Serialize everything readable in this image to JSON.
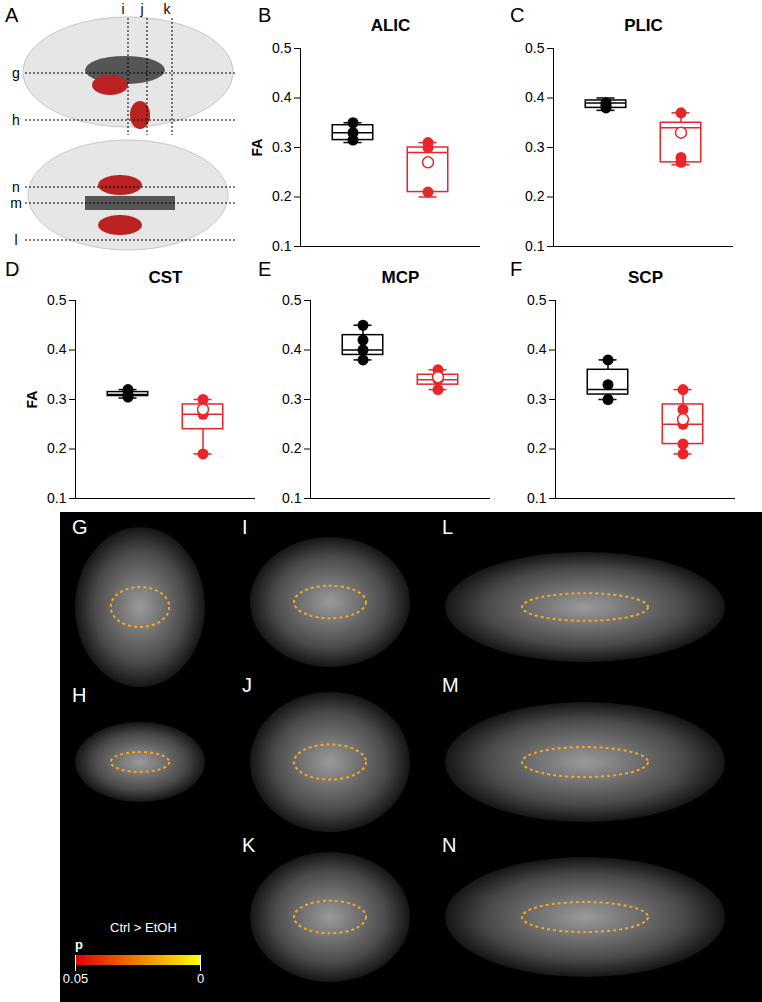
{
  "chart_data": [
    {
      "type": "box",
      "panel": "B",
      "title": "ALIC",
      "ylabel": "FA",
      "ylim": [
        0.1,
        0.5
      ],
      "yticks": [
        0.1,
        0.2,
        0.3,
        0.4,
        0.5
      ],
      "tick_labels": "y",
      "series": [
        {
          "color": "#000000",
          "points": [
            0.35,
            0.33,
            0.315
          ],
          "box": {
            "min": 0.31,
            "q1": 0.315,
            "median": 0.33,
            "q3": 0.345,
            "max": 0.35
          }
        },
        {
          "color": "#e8262a",
          "points": [
            0.31,
            0.3,
            0.21
          ],
          "box": {
            "min": 0.2,
            "q1": 0.21,
            "median": 0.29,
            "q3": 0.3,
            "max": 0.31
          },
          "mean": 0.27
        }
      ]
    },
    {
      "type": "box",
      "panel": "C",
      "title": "PLIC",
      "ylim": [
        0.1,
        0.5
      ],
      "yticks": [
        0.1,
        0.2,
        0.3,
        0.4,
        0.5
      ],
      "tick_labels": "y",
      "series": [
        {
          "color": "#000000",
          "points": [
            0.39,
            0.385,
            0.38
          ],
          "box": {
            "min": 0.375,
            "q1": 0.38,
            "median": 0.39,
            "q3": 0.395,
            "max": 0.4
          }
        },
        {
          "color": "#e8262a",
          "points": [
            0.37,
            0.33,
            0.28,
            0.27
          ],
          "box": {
            "min": 0.265,
            "q1": 0.27,
            "median": 0.34,
            "q3": 0.35,
            "max": 0.37
          },
          "mean": 0.33
        }
      ]
    },
    {
      "type": "box",
      "panel": "D",
      "title": "CST",
      "ylabel": "FA",
      "ylim": [
        0.1,
        0.5
      ],
      "yticks": [
        0.1,
        0.2,
        0.3,
        0.4,
        0.5
      ],
      "tick_labels": "y",
      "series": [
        {
          "color": "#000000",
          "points": [
            0.32,
            0.31,
            0.305
          ],
          "box": {
            "min": 0.303,
            "q1": 0.307,
            "median": 0.31,
            "q3": 0.315,
            "max": 0.32
          }
        },
        {
          "color": "#e8262a",
          "points": [
            0.3,
            0.27,
            0.19
          ],
          "box": {
            "min": 0.19,
            "q1": 0.24,
            "median": 0.27,
            "q3": 0.29,
            "max": 0.3
          },
          "mean": 0.28
        }
      ]
    },
    {
      "type": "box",
      "panel": "E",
      "title": "MCP",
      "ylim": [
        0.1,
        0.5
      ],
      "yticks": [
        0.1,
        0.2,
        0.3,
        0.4,
        0.5
      ],
      "tick_labels": "y",
      "series": [
        {
          "color": "#000000",
          "points": [
            0.45,
            0.42,
            0.4,
            0.38
          ],
          "box": {
            "min": 0.38,
            "q1": 0.39,
            "median": 0.4,
            "q3": 0.43,
            "max": 0.45
          }
        },
        {
          "color": "#e8262a",
          "points": [
            0.36,
            0.34,
            0.32
          ],
          "box": {
            "min": 0.32,
            "q1": 0.33,
            "median": 0.34,
            "q3": 0.35,
            "max": 0.36
          },
          "mean": 0.345
        }
      ]
    },
    {
      "type": "box",
      "panel": "F",
      "title": "SCP",
      "ylim": [
        0.1,
        0.5
      ],
      "yticks": [
        0.1,
        0.2,
        0.3,
        0.4,
        0.5
      ],
      "tick_labels": "y",
      "series": [
        {
          "color": "#000000",
          "points": [
            0.38,
            0.33,
            0.3
          ],
          "box": {
            "min": 0.3,
            "q1": 0.31,
            "median": 0.32,
            "q3": 0.36,
            "max": 0.38
          }
        },
        {
          "color": "#e8262a",
          "points": [
            0.32,
            0.28,
            0.25,
            0.21,
            0.19
          ],
          "box": {
            "min": 0.19,
            "q1": 0.21,
            "median": 0.25,
            "q3": 0.29,
            "max": 0.32
          },
          "mean": 0.26
        }
      ]
    }
  ],
  "figure": {
    "panel_A": {
      "label": "A",
      "vertical_slices": [
        "i",
        "j",
        "k"
      ],
      "horizontal_slices": [
        "g",
        "h"
      ],
      "axial_slices": [
        "n",
        "m",
        "l"
      ]
    },
    "image_panels": [
      "G",
      "H",
      "I",
      "J",
      "K",
      "L",
      "M",
      "N"
    ],
    "colorbar": {
      "title": "Ctrl > EtOH",
      "label": "p",
      "range": [
        0.05,
        0
      ],
      "ticks": [
        0.05,
        0
      ],
      "colors": [
        "#e00000",
        "#ffff00"
      ]
    }
  }
}
